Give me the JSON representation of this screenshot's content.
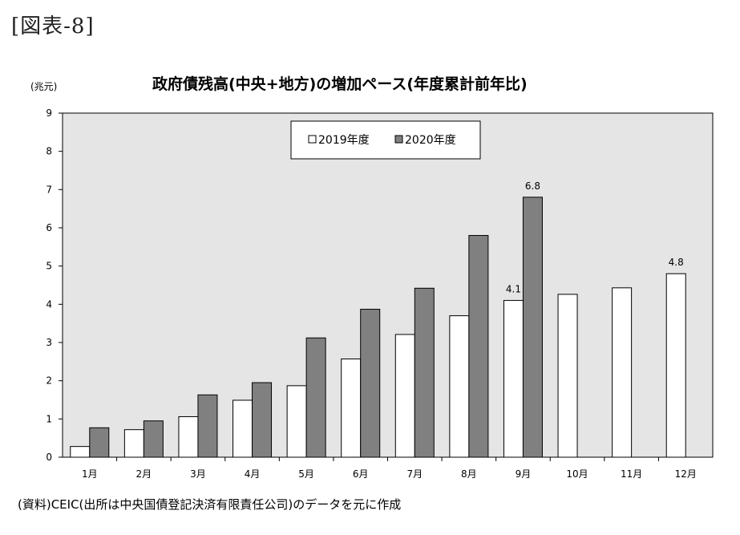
{
  "figure_label": "[図表-8]",
  "source_note": "(資料)CEIC(出所は中央国債登記決済有限責任公司)のデータを元に作成",
  "chart_data": {
    "type": "bar",
    "title": "政府債残高(中央+地方)の増加ペース(年度累計前年比)",
    "unit_label": "(兆元)",
    "xlabel": "",
    "ylabel": "",
    "ylim": [
      0,
      9
    ],
    "yticks": [
      "0",
      "1",
      "2",
      "3",
      "4",
      "5",
      "6",
      "7",
      "8",
      "9"
    ],
    "grid": false,
    "legend_position": "top-center",
    "categories": [
      "1月",
      "2月",
      "3月",
      "4月",
      "5月",
      "6月",
      "7月",
      "8月",
      "9月",
      "10月",
      "11月",
      "12月"
    ],
    "series": [
      {
        "name": "2019年度",
        "color": "#ffffff",
        "values": [
          0.28,
          0.72,
          1.06,
          1.49,
          1.87,
          2.57,
          3.21,
          3.7,
          4.1,
          4.26,
          4.43,
          4.8
        ],
        "labels": [
          "",
          "",
          "",
          "",
          "",
          "",
          "",
          "",
          "4.1",
          "",
          "",
          "4.8"
        ]
      },
      {
        "name": "2020年度",
        "color": "#808080",
        "values": [
          0.77,
          0.95,
          1.63,
          1.95,
          3.12,
          3.87,
          4.42,
          5.8,
          6.8,
          null,
          null,
          null
        ],
        "labels": [
          "",
          "",
          "",
          "",
          "",
          "",
          "",
          "",
          "6.8",
          "",
          "",
          ""
        ]
      }
    ],
    "plot_background": "#e5e5e5"
  }
}
